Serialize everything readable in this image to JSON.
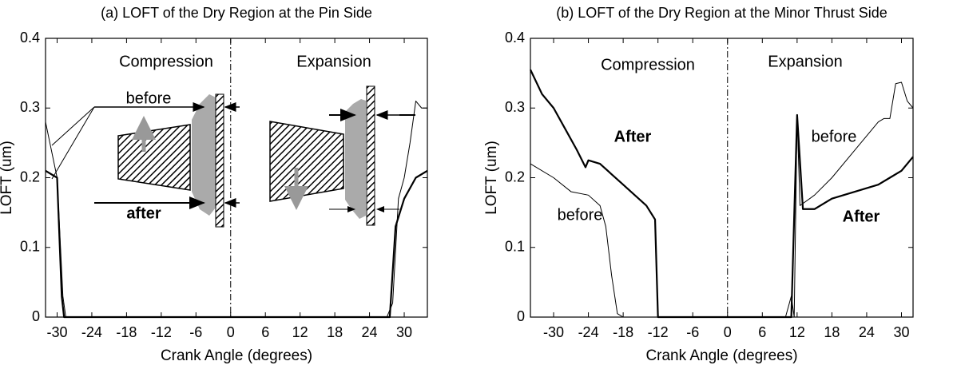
{
  "chart_data": [
    {
      "type": "line",
      "title": "(a) LOFT of the Dry Region at the Pin Side",
      "xlabel": "Crank Angle (degrees)",
      "ylabel": "LOFT (um)",
      "xlim": [
        -32,
        34
      ],
      "ylim": [
        0,
        0.4
      ],
      "xticks": [
        -30,
        -24,
        -18,
        -12,
        -6,
        0,
        6,
        12,
        18,
        24,
        30
      ],
      "yticks": [
        0,
        0.1,
        0.2,
        0.3,
        0.4
      ],
      "annotations": [
        "Compression",
        "Expansion",
        "before",
        "after"
      ],
      "series": [
        {
          "color": "#000000",
          "width": 1,
          "x": [
            -32,
            -30,
            -29,
            -28.5,
            27,
            28,
            29,
            30,
            31,
            32,
            33,
            34
          ],
          "values": [
            0.28,
            0.2,
            0.03,
            0,
            0,
            0.02,
            0.17,
            0.2,
            0.25,
            0.31,
            0.3,
            0.3
          ]
        },
        {
          "color": "#000000",
          "width": 2.2,
          "x": [
            -32,
            -30,
            -29.2,
            -28.8,
            27.5,
            28.5,
            30,
            32,
            34
          ],
          "values": [
            0.21,
            0.2,
            0.03,
            0,
            0,
            0.13,
            0.17,
            0.2,
            0.21
          ]
        }
      ]
    },
    {
      "type": "line",
      "title": "(b) LOFT of the Dry Region at the Minor Thrust Side",
      "xlabel": "Crank Angle (degrees)",
      "ylabel": "LOFT (um)",
      "xlim": [
        -34,
        32
      ],
      "ylim": [
        0,
        0.4
      ],
      "xticks": [
        -30,
        -24,
        -18,
        -12,
        -6,
        0,
        6,
        12,
        18,
        24,
        30
      ],
      "yticks": [
        0,
        0.1,
        0.2,
        0.3,
        0.4
      ],
      "annotations": [
        "Compression",
        "Expansion",
        "After",
        "before",
        "before",
        "After"
      ],
      "series": [
        {
          "color": "#000000",
          "width": 1,
          "x": [
            -34,
            -30,
            -27,
            -24,
            -22,
            -21,
            -20,
            -19,
            -18,
            10,
            11,
            11.5,
            12,
            12.5,
            15,
            18,
            22,
            26,
            27,
            28,
            29,
            30,
            31,
            32
          ],
          "values": [
            0.22,
            0.2,
            0.18,
            0.175,
            0.16,
            0.13,
            0.06,
            0.005,
            0,
            0,
            0.03,
            0,
            0.29,
            0.16,
            0.175,
            0.2,
            0.24,
            0.28,
            0.285,
            0.285,
            0.335,
            0.337,
            0.31,
            0.3
          ]
        },
        {
          "color": "#000000",
          "width": 2.2,
          "x": [
            -34,
            -32,
            -30,
            -28,
            -26,
            -24.5,
            -24,
            -22,
            -20,
            -18,
            -16,
            -14,
            -12.5,
            -12,
            11,
            12,
            13,
            15,
            18,
            22,
            24,
            26,
            28,
            30,
            32
          ],
          "values": [
            0.355,
            0.32,
            0.3,
            0.27,
            0.24,
            0.215,
            0.225,
            0.22,
            0.205,
            0.19,
            0.175,
            0.16,
            0.14,
            0,
            0,
            0.29,
            0.155,
            0.155,
            0.17,
            0.18,
            0.185,
            0.19,
            0.2,
            0.21,
            0.23
          ]
        }
      ]
    }
  ]
}
